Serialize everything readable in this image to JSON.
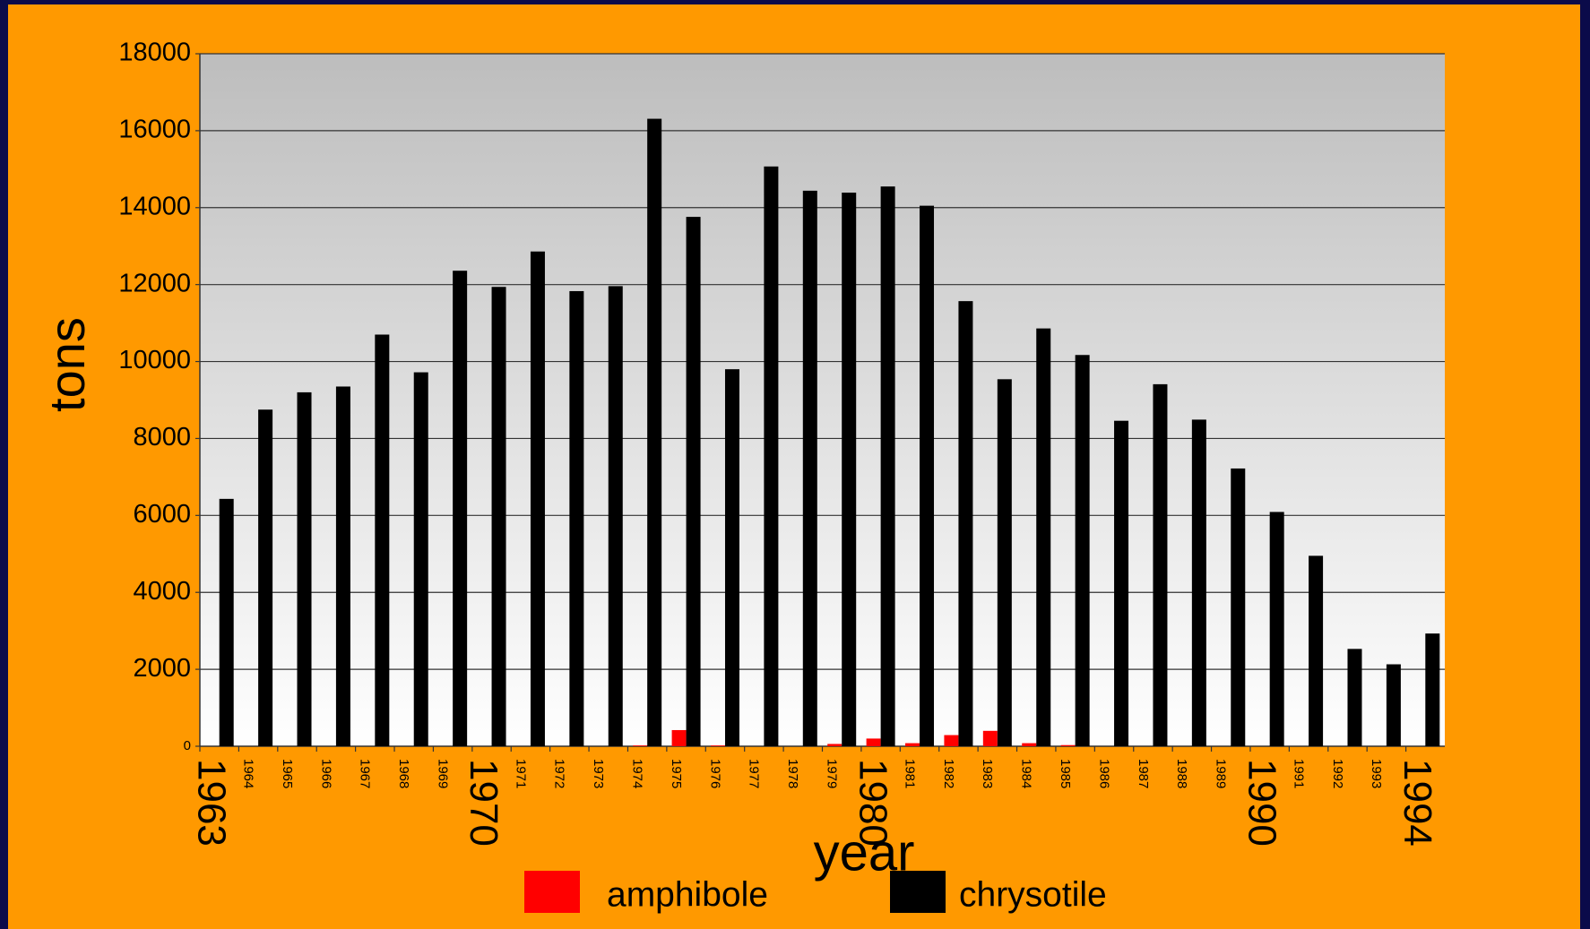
{
  "chart_data": {
    "type": "bar",
    "y_label": "tons",
    "x_label": "year",
    "categories": [
      "1963",
      "1964",
      "1965",
      "1966",
      "1967",
      "1968",
      "1969",
      "1970",
      "1971",
      "1972",
      "1973",
      "1974",
      "1975",
      "1976",
      "1977",
      "1978",
      "1979",
      "1980",
      "1981",
      "1982",
      "1983",
      "1984",
      "1985",
      "1986",
      "1987",
      "1988",
      "1989",
      "1990",
      "1991",
      "1992",
      "1993",
      "1994"
    ],
    "series": [
      {
        "name": "amphibole",
        "color": "#ff0000",
        "values": [
          0,
          0,
          0,
          0,
          0,
          0,
          0,
          0,
          0,
          0,
          0,
          20,
          420,
          20,
          0,
          0,
          60,
          200,
          80,
          290,
          400,
          80,
          30,
          0,
          0,
          0,
          0,
          0,
          0,
          0,
          0,
          0
        ]
      },
      {
        "name": "chrysotile",
        "color": "#000000",
        "values": [
          6430,
          8750,
          9200,
          9350,
          10700,
          9720,
          12360,
          11940,
          12860,
          11830,
          11960,
          16310,
          13760,
          9800,
          15070,
          14440,
          14390,
          14550,
          14050,
          11570,
          9540,
          10860,
          10170,
          8460,
          9410,
          8490,
          7220,
          6090,
          4950,
          2530,
          2130,
          2930
        ]
      }
    ],
    "ylim": [
      0,
      18000
    ],
    "yticks": [
      0,
      2000,
      4000,
      6000,
      8000,
      10000,
      12000,
      14000,
      16000,
      18000
    ],
    "grid": true,
    "legend": "bottom"
  }
}
